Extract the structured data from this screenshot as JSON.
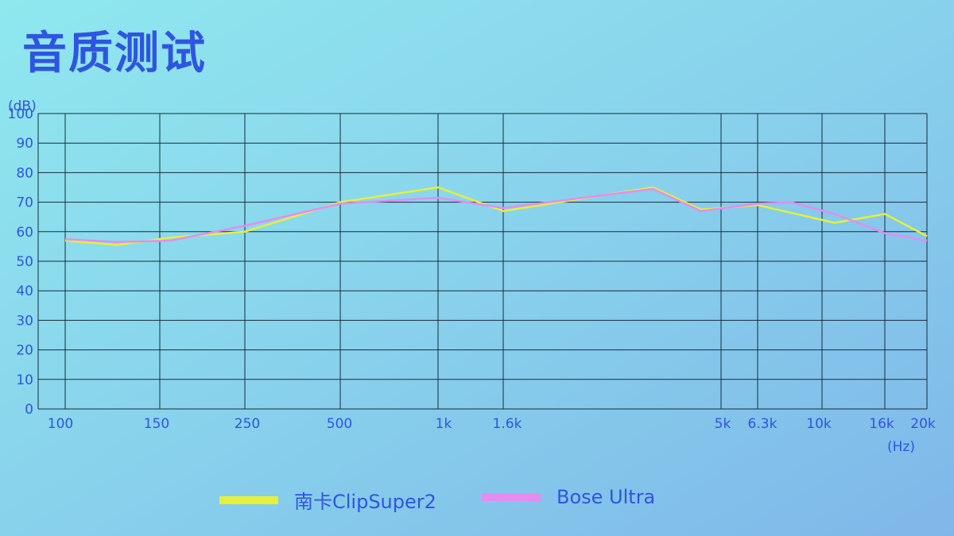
{
  "title": "音质测试",
  "chart_data": {
    "type": "line",
    "ylabel": "(dB)",
    "xlabel": "(Hz)",
    "ylim": [
      0,
      100
    ],
    "y_ticks": [
      "0",
      "10",
      "20",
      "30",
      "40",
      "50",
      "60",
      "70",
      "80",
      "90",
      "100"
    ],
    "x_ticks": [
      "100",
      "150",
      "250",
      "500",
      "1k",
      "1.6k",
      "5k",
      "6.3k",
      "10k",
      "16k",
      "20k"
    ],
    "grid": true,
    "legend_position": "bottom",
    "series": [
      {
        "name": "南卡ClipSuper2",
        "color": "#e6f03a",
        "points": [
          {
            "x": 100,
            "y": 57
          },
          {
            "x": 125,
            "y": 55.5
          },
          {
            "x": 160,
            "y": 58
          },
          {
            "x": 250,
            "y": 60
          },
          {
            "x": 500,
            "y": 70
          },
          {
            "x": 1000,
            "y": 75
          },
          {
            "x": 1600,
            "y": 67
          },
          {
            "x": 3500,
            "y": 75
          },
          {
            "x": 4500,
            "y": 67.5
          },
          {
            "x": 6300,
            "y": 69
          },
          {
            "x": 11000,
            "y": 63
          },
          {
            "x": 16000,
            "y": 66
          },
          {
            "x": 20000,
            "y": 58.5
          }
        ]
      },
      {
        "name": "Bose Ultra",
        "color": "#e48cf0",
        "points": [
          {
            "x": 100,
            "y": 57.5
          },
          {
            "x": 125,
            "y": 56.5
          },
          {
            "x": 160,
            "y": 57
          },
          {
            "x": 250,
            "y": 62
          },
          {
            "x": 500,
            "y": 69.5
          },
          {
            "x": 1000,
            "y": 71.5
          },
          {
            "x": 1600,
            "y": 68
          },
          {
            "x": 3500,
            "y": 74.5
          },
          {
            "x": 4500,
            "y": 67
          },
          {
            "x": 6300,
            "y": 69.5
          },
          {
            "x": 8000,
            "y": 70
          },
          {
            "x": 11000,
            "y": 66
          },
          {
            "x": 16000,
            "y": 59.5
          },
          {
            "x": 20000,
            "y": 57
          }
        ]
      }
    ]
  }
}
